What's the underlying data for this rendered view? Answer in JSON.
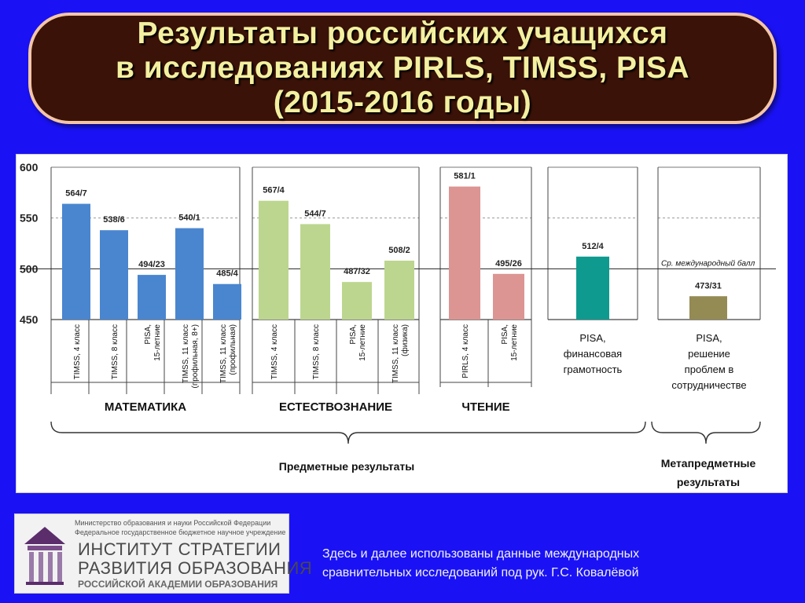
{
  "header": {
    "title_lines": [
      "Результаты российских учащихся",
      "в исследованиях PIRLS, TIMSS, PISA",
      "(2015-2016 годы)"
    ]
  },
  "chart_data": {
    "type": "bar",
    "ylim": [
      450,
      600
    ],
    "yticks": [
      450,
      500,
      550,
      600
    ],
    "reference_line": {
      "value": 500,
      "label": "Ср. международный балл"
    },
    "groups": [
      {
        "name": "МАТЕМАТИКА",
        "color": "#4a86cf",
        "bars": [
          {
            "category": [
              "TIMSS, 4 класс"
            ],
            "value": 564,
            "label": "564/7"
          },
          {
            "category": [
              "TIMSS, 8 класс"
            ],
            "value": 538,
            "label": "538/6"
          },
          {
            "category": [
              "PISA,",
              "15-летние"
            ],
            "value": 494,
            "label": "494/23"
          },
          {
            "category": [
              "TIMSS, 11 класс",
              "(профильная, 8+)"
            ],
            "value": 540,
            "label": "540/1"
          },
          {
            "category": [
              "TIMSS, 11 класс",
              "(профильная)"
            ],
            "value": 485,
            "label": "485/4"
          }
        ]
      },
      {
        "name": "ЕСТЕСТВОЗНАНИЕ",
        "color": "#bcd68f",
        "bars": [
          {
            "category": [
              "TIMSS, 4 класс"
            ],
            "value": 567,
            "label": "567/4"
          },
          {
            "category": [
              "TIMSS, 8 класс"
            ],
            "value": 544,
            "label": "544/7"
          },
          {
            "category": [
              "PISA,",
              "15-летние"
            ],
            "value": 487,
            "label": "487/32"
          },
          {
            "category": [
              "TIMSS, 11 класс",
              "(физика)"
            ],
            "value": 508,
            "label": "508/2"
          }
        ]
      },
      {
        "name": "ЧТЕНИЕ",
        "color": "#dc9593",
        "bars": [
          {
            "category": [
              "PIRLS, 4 класс"
            ],
            "value": 581,
            "label": "581/1"
          },
          {
            "category": [
              "PISA,",
              "15-летние"
            ],
            "value": 495,
            "label": "495/26"
          }
        ]
      },
      {
        "name": "",
        "color": "#0f9a8f",
        "center_label": [
          "PISA,",
          "финансовая",
          "грамотность"
        ],
        "bars": [
          {
            "category": [],
            "value": 512,
            "label": "512/4"
          }
        ]
      },
      {
        "name": "",
        "color": "#948a54",
        "center_label": [
          "PISA,",
          "решение",
          "проблем в",
          "сотрудничестве"
        ],
        "bars": [
          {
            "category": [],
            "value": 473,
            "label": "473/31"
          }
        ]
      }
    ],
    "bracket_labels": {
      "subject": "Предметные результаты",
      "meta": [
        "Метапредметные",
        "результаты"
      ]
    }
  },
  "logo": {
    "small_lines": [
      "Министерство образования и науки Российской Федерации",
      "Федеральное государственное бюджетное научное учреждение"
    ],
    "name_lines": [
      "ИНСТИТУТ СТРАТЕГИИ",
      "РАЗВИТИЯ ОБРАЗОВАНИЯ"
    ],
    "bottom_line": "РОССИЙСКОЙ АКАДЕМИИ ОБРАЗОВАНИЯ"
  },
  "footnote": {
    "lines": [
      "Здесь и далее использованы данные международных",
      "сравнительных исследований под рук. Г.С. Ковалёвой"
    ]
  }
}
